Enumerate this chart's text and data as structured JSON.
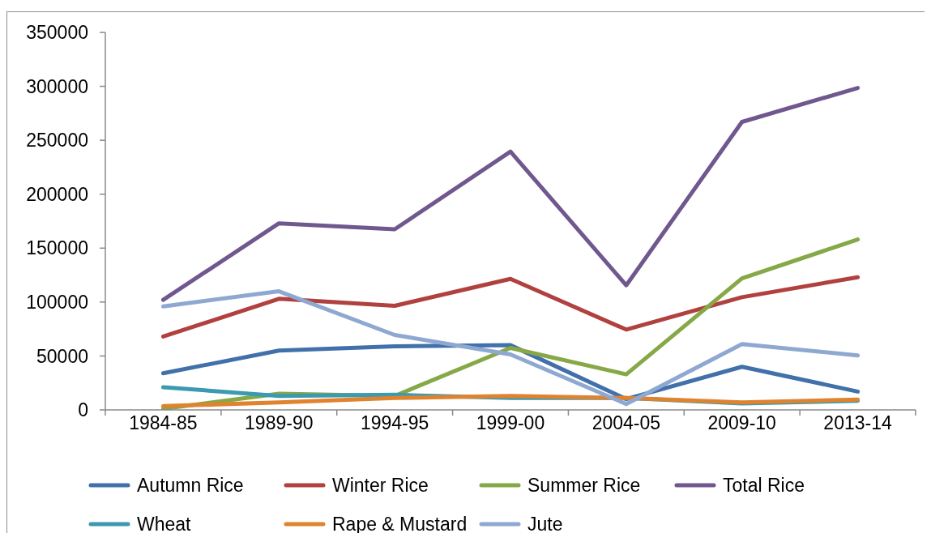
{
  "chart_data": {
    "type": "line",
    "categories": [
      "1984-85",
      "1989-90",
      "1994-95",
      "1999-00",
      "2004-05",
      "2009-10",
      "2013-14"
    ],
    "series": [
      {
        "name": "Autumn Rice",
        "color": "#4170aa",
        "values": [
          34000,
          55000,
          59000,
          60000,
          10000,
          40000,
          17000
        ]
      },
      {
        "name": "Winter Rice",
        "color": "#b0413e",
        "values": [
          68000,
          103000,
          96500,
          121500,
          74500,
          104500,
          123000
        ]
      },
      {
        "name": "Summer Rice",
        "color": "#86a846",
        "values": [
          1000,
          15000,
          13000,
          57500,
          33000,
          122000,
          158000
        ]
      },
      {
        "name": "Total Rice",
        "color": "#70588f",
        "values": [
          102000,
          173000,
          167500,
          239500,
          115500,
          267000,
          298500
        ]
      },
      {
        "name": "Wheat",
        "color": "#3c9ab0",
        "values": [
          21000,
          13000,
          14000,
          11000,
          11000,
          6000,
          8500
        ]
      },
      {
        "name": "Rape & Mustard",
        "color": "#e0832f",
        "values": [
          3500,
          7000,
          11000,
          13000,
          11000,
          7000,
          9500
        ]
      },
      {
        "name": "Jute",
        "color": "#8ea8d2",
        "values": [
          96000,
          110000,
          69500,
          51500,
          5500,
          61000,
          50500
        ]
      }
    ],
    "ylim": [
      0,
      350000
    ],
    "yticks": [
      0,
      50000,
      100000,
      150000,
      200000,
      250000,
      300000,
      350000
    ],
    "legend": "bottom",
    "line_style": "solid"
  }
}
